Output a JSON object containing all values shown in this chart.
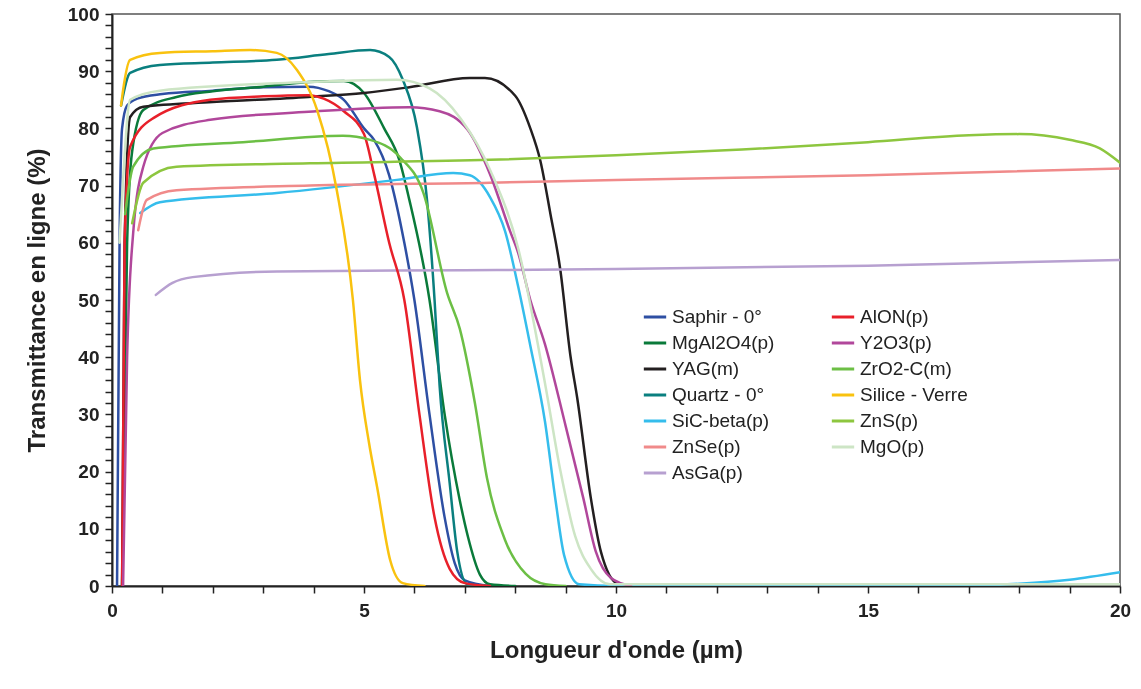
{
  "chart_data": {
    "type": "line",
    "xlabel": "Longueur d'onde (µm)",
    "ylabel": "Transmittance en ligne (%)",
    "xlim": [
      0,
      20
    ],
    "ylim": [
      0,
      100
    ],
    "xticks": [
      0,
      {
        "value": 1,
        "label": null
      },
      {
        "value": 2,
        "label": null
      },
      {
        "value": 3,
        "label": null
      },
      {
        "value": 4,
        "label": null
      },
      5,
      {
        "value": 6,
        "label": null
      },
      {
        "value": 7,
        "label": null
      },
      {
        "value": 8,
        "label": null
      },
      {
        "value": 9,
        "label": null
      },
      10,
      {
        "value": 11,
        "label": null
      },
      {
        "value": 12,
        "label": null
      },
      {
        "value": 13,
        "label": null
      },
      {
        "value": 14,
        "label": null
      },
      15,
      {
        "value": 16,
        "label": null
      },
      {
        "value": 17,
        "label": null
      },
      {
        "value": 18,
        "label": null
      },
      {
        "value": 19,
        "label": null
      },
      20
    ],
    "yticks": [
      0,
      {
        "value": 2,
        "label": null
      },
      {
        "value": 4,
        "label": null
      },
      {
        "value": 6,
        "label": null
      },
      {
        "value": 8,
        "label": null
      },
      10,
      {
        "value": 12,
        "label": null
      },
      {
        "value": 14,
        "label": null
      },
      {
        "value": 16,
        "label": null
      },
      {
        "value": 18,
        "label": null
      },
      20,
      {
        "value": 22,
        "label": null
      },
      {
        "value": 24,
        "label": null
      },
      {
        "value": 26,
        "label": null
      },
      {
        "value": 28,
        "label": null
      },
      30,
      {
        "value": 32,
        "label": null
      },
      {
        "value": 34,
        "label": null
      },
      {
        "value": 36,
        "label": null
      },
      {
        "value": 38,
        "label": null
      },
      40,
      {
        "value": 42,
        "label": null
      },
      {
        "value": 44,
        "label": null
      },
      {
        "value": 46,
        "label": null
      },
      {
        "value": 48,
        "label": null
      },
      50,
      {
        "value": 52,
        "label": null
      },
      {
        "value": 54,
        "label": null
      },
      {
        "value": 56,
        "label": null
      },
      {
        "value": 58,
        "label": null
      },
      60,
      {
        "value": 62,
        "label": null
      },
      {
        "value": 64,
        "label": null
      },
      {
        "value": 66,
        "label": null
      },
      {
        "value": 68,
        "label": null
      },
      70,
      {
        "value": 72,
        "label": null
      },
      {
        "value": 74,
        "label": null
      },
      {
        "value": 76,
        "label": null
      },
      {
        "value": 78,
        "label": null
      },
      80,
      {
        "value": 82,
        "label": null
      },
      {
        "value": 84,
        "label": null
      },
      {
        "value": 86,
        "label": null
      },
      {
        "value": 88,
        "label": null
      },
      90,
      {
        "value": 92,
        "label": null
      },
      {
        "value": 94,
        "label": null
      },
      {
        "value": 96,
        "label": null
      },
      {
        "value": 98,
        "label": null
      },
      100
    ],
    "grid": false,
    "legend": "right",
    "line_style": "solid",
    "marker": "none",
    "series": [
      {
        "name": "Saphir - 0°",
        "color": "#2e4fa3",
        "x": [
          0.1,
          0.15,
          0.2,
          0.3,
          0.5,
          1,
          2,
          3,
          3.9,
          4.3,
          4.6,
          5.0,
          5.2,
          5.5,
          5.8,
          6.0,
          6.3,
          6.6,
          6.8,
          7.0,
          7.5
        ],
        "values": [
          0,
          60,
          80,
          84,
          85.2,
          86,
          86.6,
          87.2,
          87.3,
          86.5,
          85,
          80,
          78,
          71.8,
          60,
          50,
          30,
          12,
          4,
          1,
          0
        ]
      },
      {
        "name": "MgAl2O4(p)",
        "color": "#0a7a3a",
        "x": [
          0.2,
          0.3,
          0.4,
          0.62,
          1.28,
          2,
          3,
          3.9,
          4.6,
          5.0,
          5.4,
          5.7,
          5.9,
          6.3,
          6.6,
          6.9,
          7.06,
          7.3,
          7.5,
          8
        ],
        "values": [
          0,
          60,
          76,
          83.2,
          85.5,
          86.5,
          87.3,
          88.1,
          88.3,
          86.2,
          80,
          74.5,
          67.5,
          50,
          30,
          15,
          8.7,
          2,
          0.3,
          0
        ]
      },
      {
        "name": "YAG(m)",
        "color": "#231f20",
        "x": [
          0.2,
          0.25,
          0.36,
          0.62,
          2,
          3.9,
          5,
          5.9,
          7.1,
          7.4,
          8.0,
          8.3,
          8.5,
          8.7,
          8.89,
          9.1,
          9.23,
          9.5,
          9.7,
          10.04,
          10.5
        ],
        "values": [
          0,
          60,
          82,
          83.8,
          84.6,
          85.5,
          86.2,
          87.2,
          88.8,
          88.8,
          85.7,
          80,
          74.3,
          65,
          55.6,
          40,
          32.9,
          15.4,
          6,
          0.4,
          0
        ]
      },
      {
        "name": "Quartz - 0°",
        "color": "#0a7f7f",
        "x": [
          0.18,
          0.36,
          0.95,
          2,
          3.27,
          4.3,
          5.12,
          5.5,
          5.77,
          6.05,
          6.25,
          6.4,
          6.5,
          6.7,
          6.85,
          7.05,
          7.5
        ],
        "values": [
          84,
          89.7,
          91.1,
          91.5,
          92,
          93,
          93.7,
          92.5,
          88.5,
          80.2,
          67.5,
          50,
          35,
          18,
          6,
          0.3,
          0
        ]
      },
      {
        "name": "SiC-beta(p)",
        "color": "#35bdec",
        "x": [
          0.56,
          0.95,
          3.27,
          5.65,
          6.77,
          7.1,
          7.5,
          7.8,
          8.06,
          8.3,
          8.59,
          8.8,
          8.97,
          9.27,
          10,
          16.5,
          18,
          19,
          20
        ],
        "values": [
          65.2,
          67.1,
          68.7,
          71,
          72.2,
          71.8,
          68,
          62,
          52.3,
          42,
          28.8,
          15,
          5.4,
          0.3,
          0,
          0,
          0.4,
          1.1,
          2.4
        ]
      },
      {
        "name": "ZnSe(p)",
        "color": "#f08a8a",
        "x": [
          0.52,
          0.69,
          1.28,
          3.93,
          7.5,
          10,
          15,
          20
        ],
        "values": [
          62.2,
          67.5,
          69.2,
          70,
          70.5,
          71,
          71.8,
          73
        ]
      },
      {
        "name": "AsGa(p)",
        "color": "#b7a0d0",
        "x": [
          0.87,
          1.2,
          1.6,
          3.27,
          7,
          10,
          15,
          20
        ],
        "values": [
          50.9,
          53,
          54,
          55,
          55.2,
          55.4,
          56,
          57
        ]
      },
      {
        "name": "AlON(p)",
        "color": "#e8202a",
        "x": [
          0.2,
          0.25,
          0.36,
          0.82,
          1.95,
          3,
          3.9,
          4.2,
          4.6,
          5.0,
          5.2,
          5.5,
          5.8,
          6.1,
          6.4,
          6.7,
          7.0,
          7.5
        ],
        "values": [
          0,
          60,
          76.8,
          81.8,
          85,
          85.6,
          85.8,
          85.2,
          83,
          79,
          72,
          60,
          50,
          30,
          12,
          3,
          0.5,
          0
        ]
      },
      {
        "name": "Y2O3(p)",
        "color": "#b1479b",
        "x": [
          0.22,
          0.3,
          0.42,
          0.62,
          1.0,
          1.95,
          3.9,
          5.9,
          6.5,
          7.06,
          7.5,
          7.9,
          8.06,
          8.3,
          8.59,
          9.0,
          9.35,
          9.6,
          9.9,
          10.3
        ],
        "values": [
          0,
          40,
          61.7,
          73.3,
          79.2,
          81.5,
          82.9,
          83.7,
          83,
          79.7,
          72,
          62,
          58.2,
          50,
          42.3,
          28,
          15.4,
          6,
          1.4,
          0
        ]
      },
      {
        "name": "ZrO2-C(m)",
        "color": "#6cbf45",
        "x": [
          0.26,
          0.42,
          0.82,
          2.6,
          4.58,
          5.12,
          5.71,
          6.18,
          6.65,
          6.9,
          7.2,
          7.44,
          7.8,
          8.21,
          8.6,
          9
        ],
        "values": [
          65,
          73.3,
          76.5,
          77.6,
          78.7,
          78,
          75,
          68.7,
          51.2,
          45,
          32,
          18.9,
          8,
          2.1,
          0.3,
          0
        ]
      },
      {
        "name": "Silice - Verre",
        "color": "#f9c20f",
        "x": [
          0.18,
          0.22,
          0.36,
          0.95,
          2,
          2.74,
          3.27,
          3.67,
          4.07,
          4.46,
          4.78,
          4.92,
          5.1,
          5.26,
          5.52,
          5.77,
          6.2
        ],
        "values": [
          84,
          86.7,
          92,
          93.2,
          93.5,
          93.7,
          93.2,
          90.2,
          83.2,
          69.2,
          50,
          36,
          25,
          17.3,
          4.5,
          0.5,
          0
        ]
      },
      {
        "name": "ZnS(p)",
        "color": "#8dc63f",
        "x": [
          0.4,
          0.62,
          1.28,
          3.93,
          7.5,
          10,
          12.5,
          15,
          17,
          18,
          19,
          19.6,
          20
        ],
        "values": [
          63.4,
          70.5,
          73.3,
          73.9,
          74.5,
          75.3,
          76.3,
          77.6,
          78.8,
          79,
          78,
          76.5,
          74
        ]
      },
      {
        "name": "MgO(p)",
        "color": "#cde5c5",
        "x": [
          0.15,
          0.22,
          0.36,
          0.95,
          3.93,
          5.65,
          6.3,
          6.92,
          7.52,
          8.06,
          8.59,
          8.9,
          9.19,
          9.5,
          9.88,
          15,
          20
        ],
        "values": [
          60,
          71,
          85,
          86.6,
          88.1,
          88.5,
          87,
          81.7,
          72.4,
          59,
          35.5,
          20,
          8.7,
          3,
          0.3,
          0.3,
          0.3
        ]
      }
    ]
  }
}
